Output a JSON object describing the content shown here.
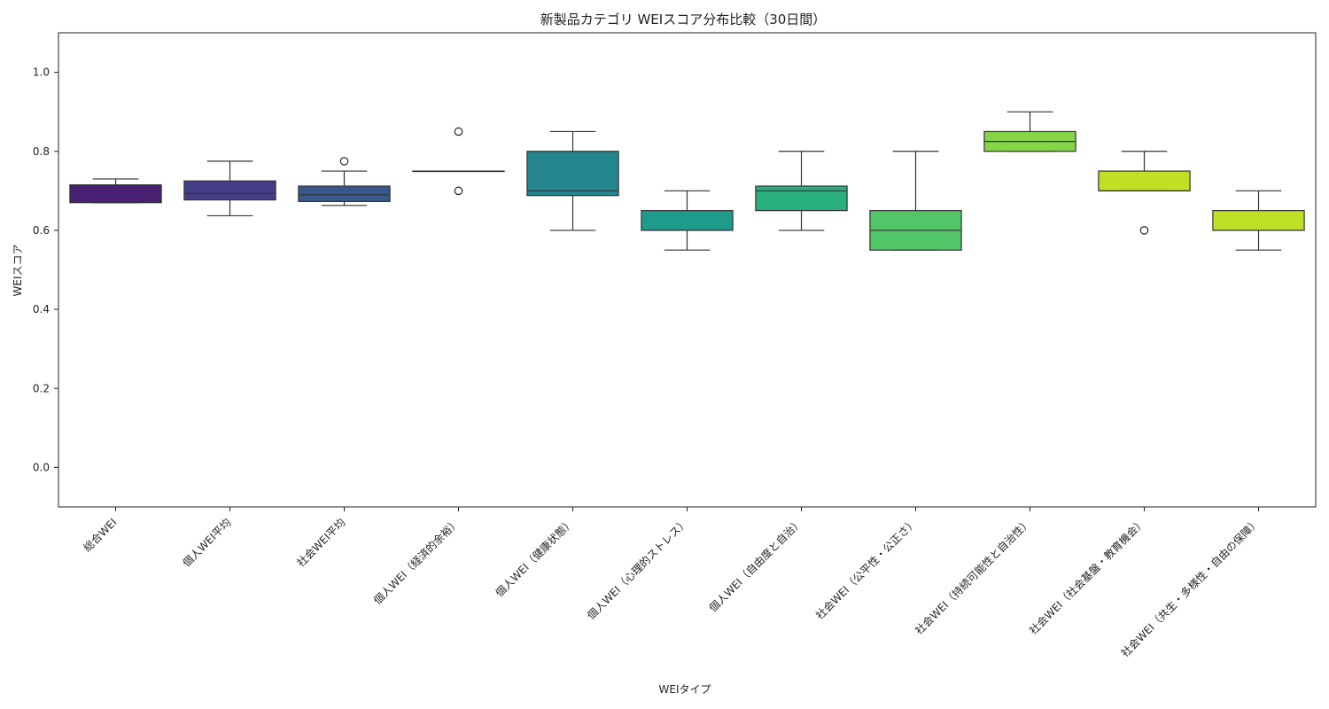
{
  "chart_data": {
    "type": "box",
    "title": "新製品カテゴリ WEIスコア分布比較（30日間）",
    "xlabel": "WEIタイプ",
    "ylabel": "WEIスコア",
    "ylim": [
      -0.1,
      1.1
    ],
    "yticks": [
      0.0,
      0.2,
      0.4,
      0.6,
      0.8,
      1.0
    ],
    "ytick_labels": [
      "0.0",
      "0.2",
      "0.4",
      "0.6",
      "0.8",
      "1.0"
    ],
    "grid": false,
    "legend": "none",
    "boxes": [
      {
        "category": "総合WEI",
        "whisker_low": 0.67,
        "q1": 0.67,
        "median": 0.715,
        "q3": 0.715,
        "whisker_high": 0.73,
        "outliers": [],
        "color": "#482173"
      },
      {
        "category": "個人WEI平均",
        "whisker_low": 0.637,
        "q1": 0.677,
        "median": 0.693,
        "q3": 0.725,
        "whisker_high": 0.775,
        "outliers": [],
        "color": "#433e85"
      },
      {
        "category": "社会WEI平均",
        "whisker_low": 0.663,
        "q1": 0.673,
        "median": 0.69,
        "q3": 0.712,
        "whisker_high": 0.75,
        "outliers": [
          0.775
        ],
        "color": "#38588c"
      },
      {
        "category": "個人WEI（経済的余裕）",
        "whisker_low": 0.75,
        "q1": 0.75,
        "median": 0.75,
        "q3": 0.75,
        "whisker_high": 0.75,
        "outliers": [
          0.85,
          0.7
        ],
        "color": "#2d708e"
      },
      {
        "category": "個人WEI（健康状態）",
        "whisker_low": 0.6,
        "q1": 0.688,
        "median": 0.7,
        "q3": 0.8,
        "whisker_high": 0.85,
        "outliers": [],
        "color": "#25858e"
      },
      {
        "category": "個人WEI（心理的ストレス）",
        "whisker_low": 0.55,
        "q1": 0.6,
        "median": 0.6,
        "q3": 0.65,
        "whisker_high": 0.7,
        "outliers": [],
        "color": "#1e9b8a"
      },
      {
        "category": "個人WEI（自由度と自治）",
        "whisker_low": 0.6,
        "q1": 0.65,
        "median": 0.7,
        "q3": 0.712,
        "whisker_high": 0.8,
        "outliers": [],
        "color": "#2ab07f"
      },
      {
        "category": "社会WEI（公平性・公正さ）",
        "whisker_low": 0.55,
        "q1": 0.55,
        "median": 0.6,
        "q3": 0.65,
        "whisker_high": 0.8,
        "outliers": [],
        "color": "#52c569"
      },
      {
        "category": "社会WEI（持続可能性と自治性）",
        "whisker_low": 0.8,
        "q1": 0.8,
        "median": 0.825,
        "q3": 0.85,
        "whisker_high": 0.9,
        "outliers": [],
        "color": "#86d549"
      },
      {
        "category": "社会WEI（社会基盤・教育機会）",
        "whisker_low": 0.7,
        "q1": 0.7,
        "median": 0.7,
        "q3": 0.75,
        "whisker_high": 0.8,
        "outliers": [
          0.6
        ],
        "color": "#c2df23"
      },
      {
        "category": "社会WEI（共生・多様性・自由の保障）",
        "whisker_low": 0.55,
        "q1": 0.6,
        "median": 0.6,
        "q3": 0.65,
        "whisker_high": 0.7,
        "outliers": [],
        "color": "#bddf26"
      }
    ]
  }
}
